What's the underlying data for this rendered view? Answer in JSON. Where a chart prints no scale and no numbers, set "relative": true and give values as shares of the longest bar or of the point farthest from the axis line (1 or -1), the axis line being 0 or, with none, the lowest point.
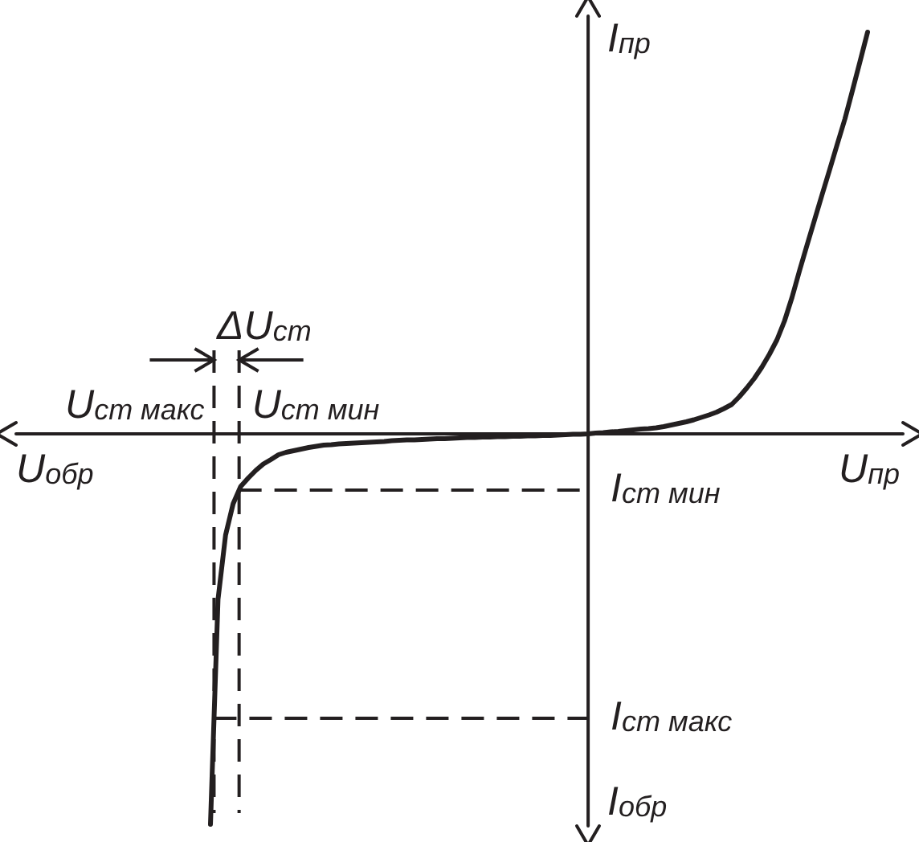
{
  "chart_data": {
    "type": "line",
    "relative": true,
    "xlabel": "U$_{пр}$",
    "ylabel": "I$_{пр}$",
    "categories": [
      null,
      null,
      null,
      null,
      null,
      null,
      null,
      null,
      null,
      null,
      null,
      null,
      null,
      null,
      null,
      null,
      null,
      null,
      null,
      null,
      null,
      null,
      null,
      null,
      null,
      null,
      null,
      null,
      null,
      null,
      null,
      null,
      null,
      null,
      null,
      null,
      null,
      null,
      null,
      null,
      null,
      null,
      null,
      null,
      null,
      null,
      null,
      null,
      null,
      null,
      null,
      null,
      null,
      null,
      null,
      null,
      null,
      null,
      null,
      null,
      null,
      null,
      null,
      null,
      null,
      null,
      null,
      null,
      null,
      null,
      null,
      null,
      null,
      null,
      null,
      null,
      null,
      null,
      null,
      null,
      null,
      null,
      null,
      null,
      null,
      null,
      null,
      null
    ],
    "series": [
      {
        "color": "#231f20",
        "values": [
          -0.972,
          -0.412,
          -0.252,
          -0.174,
          -0.131,
          -0.11,
          -0.091,
          -0.075,
          -0.064,
          -0.052,
          -0.046,
          -0.042,
          -0.038,
          -0.034,
          -0.031,
          -0.028,
          -0.027,
          -0.025,
          -0.024,
          -0.023,
          -0.022,
          -0.021,
          -0.02,
          -0.019,
          -0.017,
          -0.016,
          -0.015,
          -0.015,
          -0.014,
          -0.013,
          -0.012,
          -0.012,
          -0.011,
          -0.01,
          -0.009,
          -0.009,
          -0.008,
          -0.008,
          -0.007,
          -0.007,
          -0.006,
          -0.006,
          -0.005,
          -0.005,
          -0.004,
          -0.004,
          -0.003,
          -0.002,
          -0.001,
          -0.001,
          0,
          0.002,
          0.003,
          0.005,
          0.006,
          0.008,
          0.01,
          0.012,
          0.013,
          0.015,
          0.018,
          0.022,
          0.026,
          0.03,
          0.035,
          0.041,
          0.047,
          0.054,
          0.063,
          0.073,
          0.092,
          0.114,
          0.138,
          0.166,
          0.198,
          0.234,
          0.281,
          0.34,
          0.407,
          0.471,
          0.534,
          0.597,
          0.659,
          0.722,
          0.784,
          0.855,
          0.927,
          1
        ]
      }
    ],
    "ref_lines": [
      {
        "axis": "y",
        "value": -0.14,
        "label": "I$_{ст мин}$",
        "color": "#231f20",
        "line_style": "dashed"
      },
      {
        "axis": "y",
        "value": -0.708,
        "label": "I$_{ст макс}$",
        "color": "#231f20",
        "line_style": "dashed"
      }
    ],
    "annotations": [
      "U$_{обр}$",
      "I$_{обр}$",
      "U$_{ст макс}$",
      "U$_{ст мин}$",
      "ΔU$_{ст}$"
    ]
  }
}
